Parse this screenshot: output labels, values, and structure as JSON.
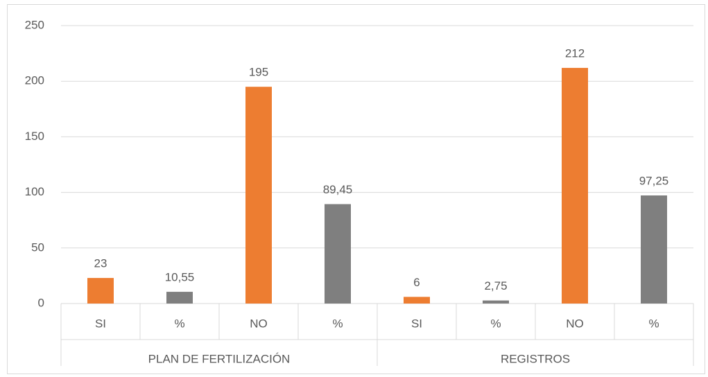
{
  "chart_data": {
    "type": "bar",
    "groups": [
      {
        "name": "PLAN DE FERTILIZACIÓN",
        "categories": [
          "SI",
          "%",
          "NO",
          "%"
        ],
        "values": [
          23,
          10.55,
          195,
          89.45
        ],
        "value_labels": [
          "23",
          "10,55",
          "195",
          "89,45"
        ],
        "colors": [
          "#ed7d31",
          "#7f7f7f",
          "#ed7d31",
          "#7f7f7f"
        ]
      },
      {
        "name": "REGISTROS",
        "categories": [
          "SI",
          "%",
          "NO",
          "%"
        ],
        "values": [
          6,
          2.75,
          212,
          97.25
        ],
        "value_labels": [
          "6",
          "2,75",
          "212",
          "97,25"
        ],
        "colors": [
          "#ed7d31",
          "#7f7f7f",
          "#ed7d31",
          "#7f7f7f"
        ]
      }
    ],
    "ylim": [
      0,
      250
    ],
    "yticks": [
      0,
      50,
      100,
      150,
      200,
      250
    ],
    "grid": true
  }
}
